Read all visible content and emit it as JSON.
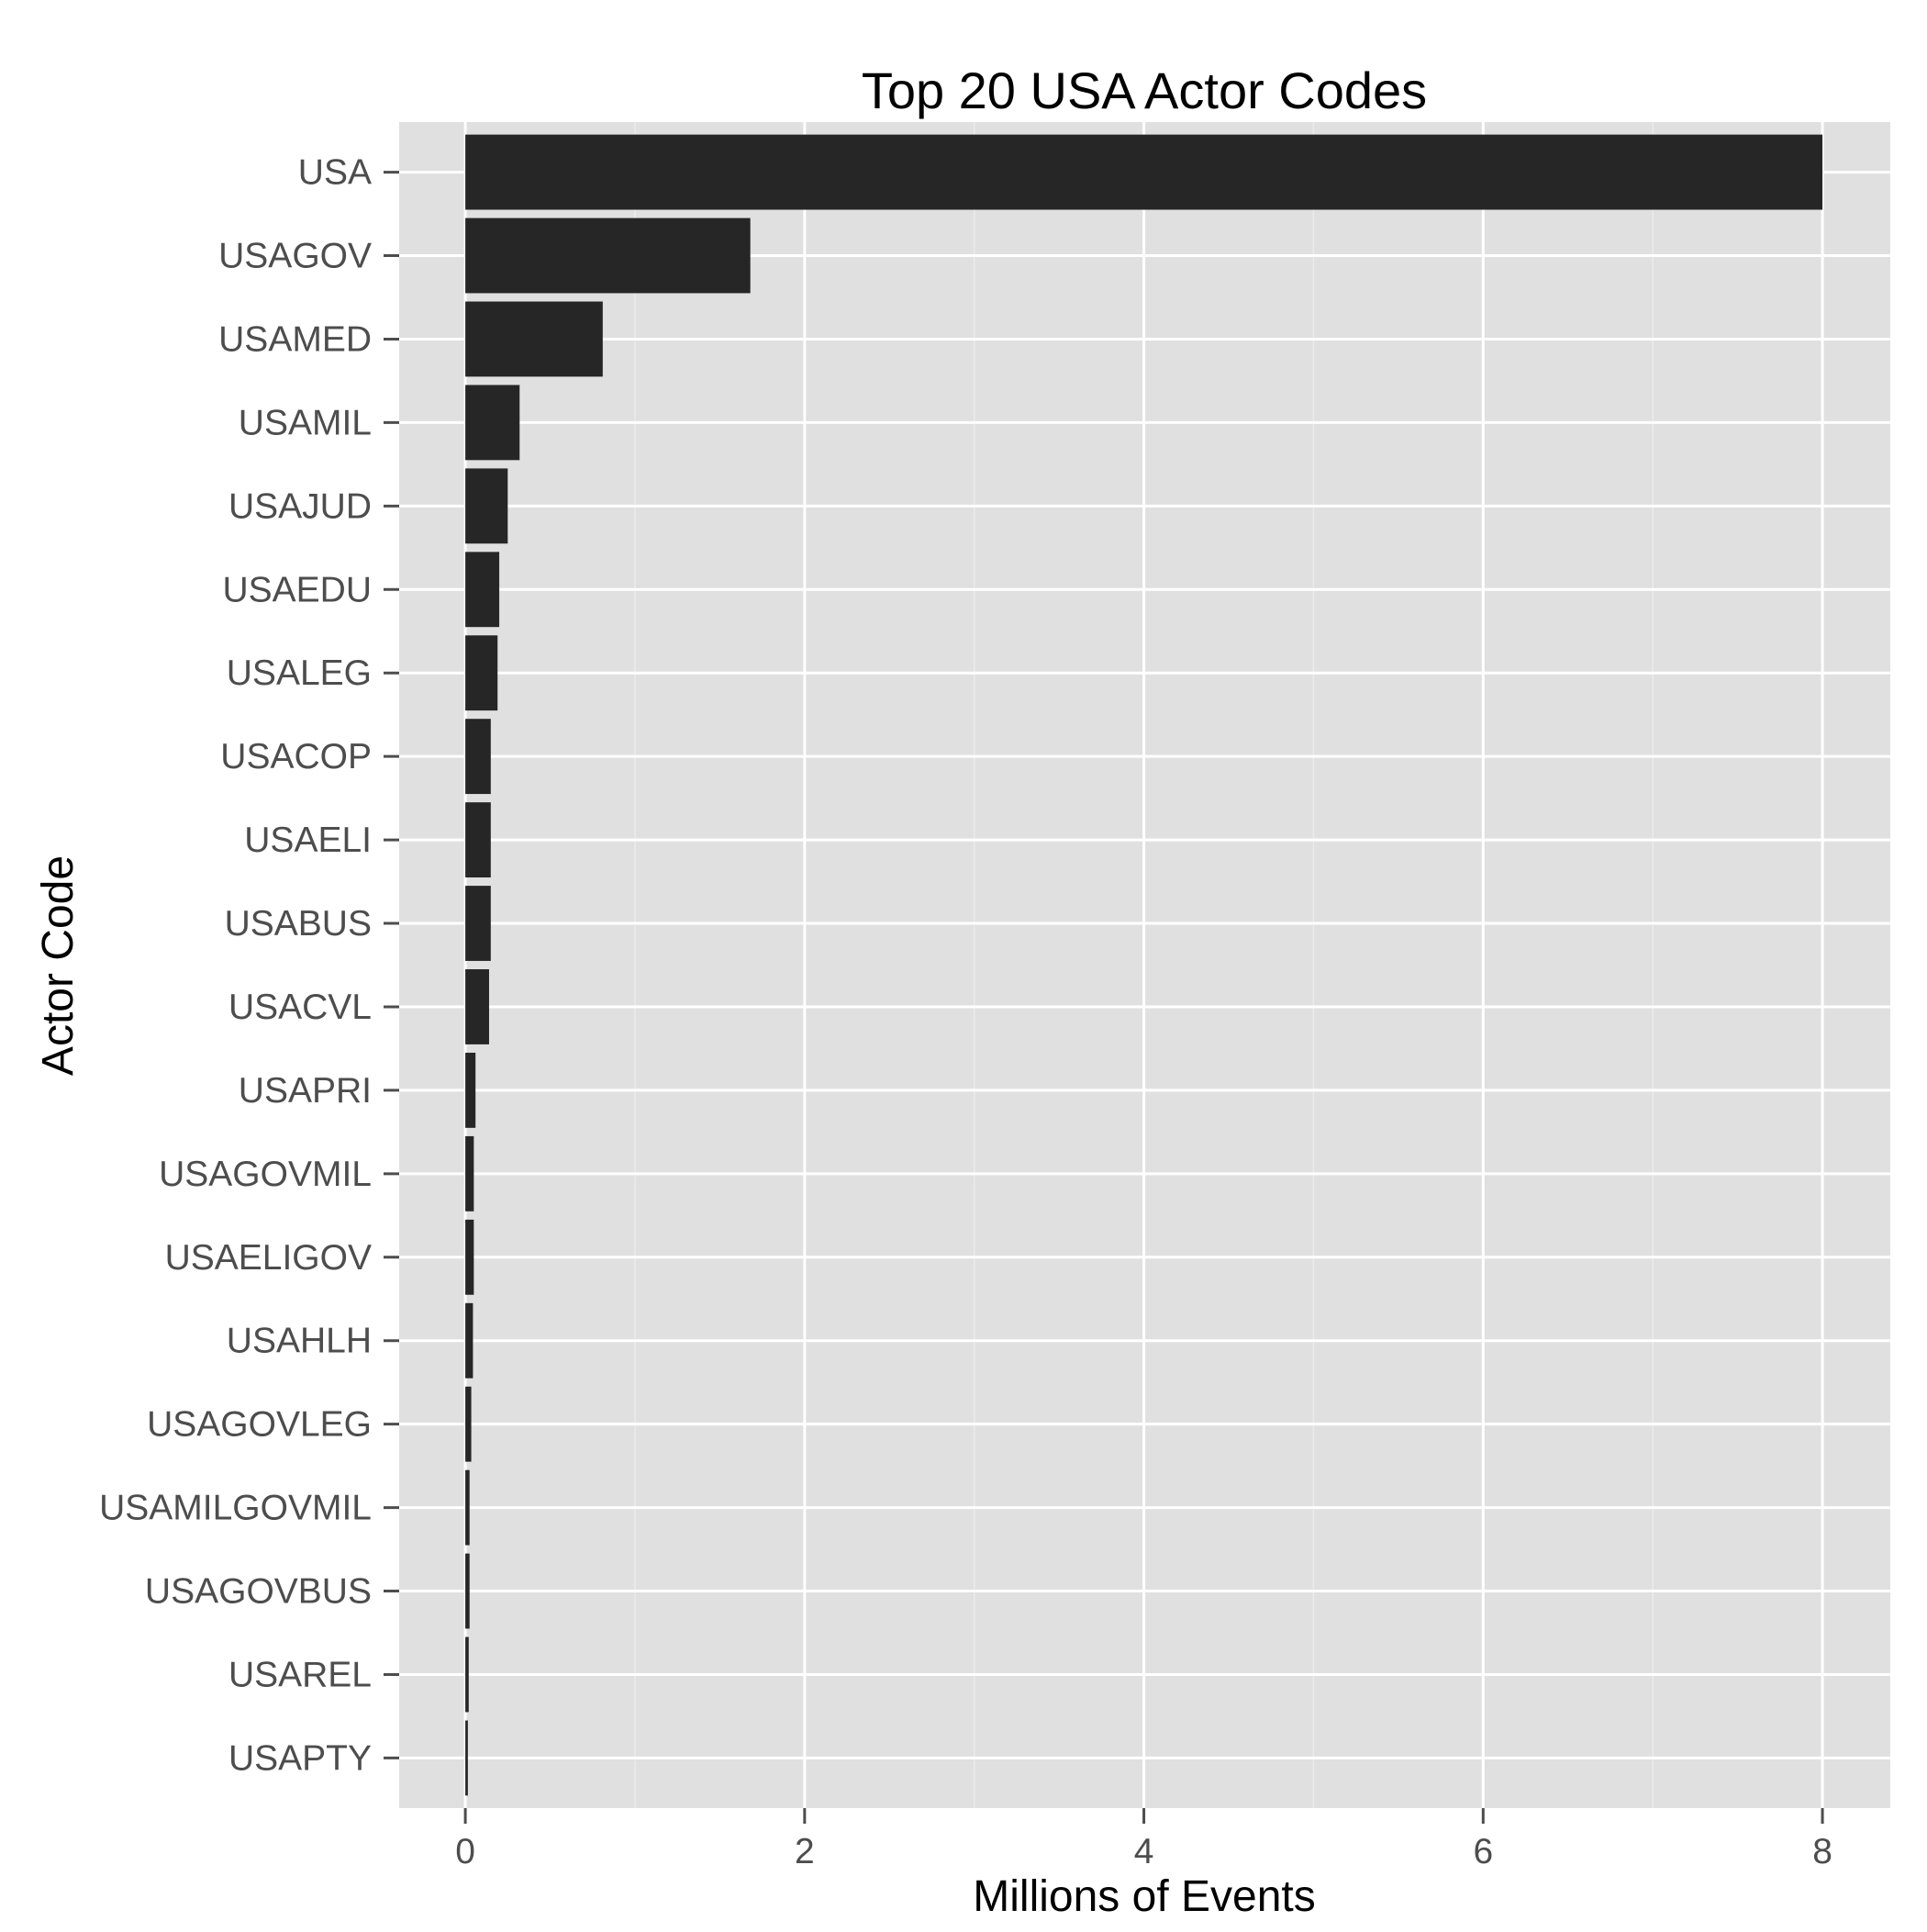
{
  "chart_data": {
    "type": "bar",
    "orientation": "horizontal",
    "title": "Top 20 USA Actor Codes",
    "xlabel": "Millions of Events",
    "ylabel": "Actor Code",
    "categories": [
      "USA",
      "USAGOV",
      "USAMED",
      "USAMIL",
      "USAJUD",
      "USAEDU",
      "USALEG",
      "USACOP",
      "USAELI",
      "USABUS",
      "USACVL",
      "USAPRI",
      "USAGOVMIL",
      "USAELIGOV",
      "USAHLH",
      "USAGOVLEG",
      "USAMILGOVMIL",
      "USAGOVBUS",
      "USAREL",
      "USAPTY"
    ],
    "values": [
      8.0,
      1.68,
      0.81,
      0.32,
      0.25,
      0.2,
      0.19,
      0.15,
      0.15,
      0.15,
      0.14,
      0.06,
      0.05,
      0.05,
      0.045,
      0.035,
      0.025,
      0.025,
      0.02,
      0.015
    ],
    "xlim": [
      -0.39,
      8.4
    ],
    "xticks": [
      "0",
      "2",
      "4",
      "6",
      "8"
    ],
    "grid": true,
    "legend": "none",
    "colors": {
      "bar": "#262626",
      "panel": "#e0e0e0",
      "grid": "#ffffff",
      "grid_minor": "#ebebeb",
      "tick": "#4d4d4d"
    }
  }
}
